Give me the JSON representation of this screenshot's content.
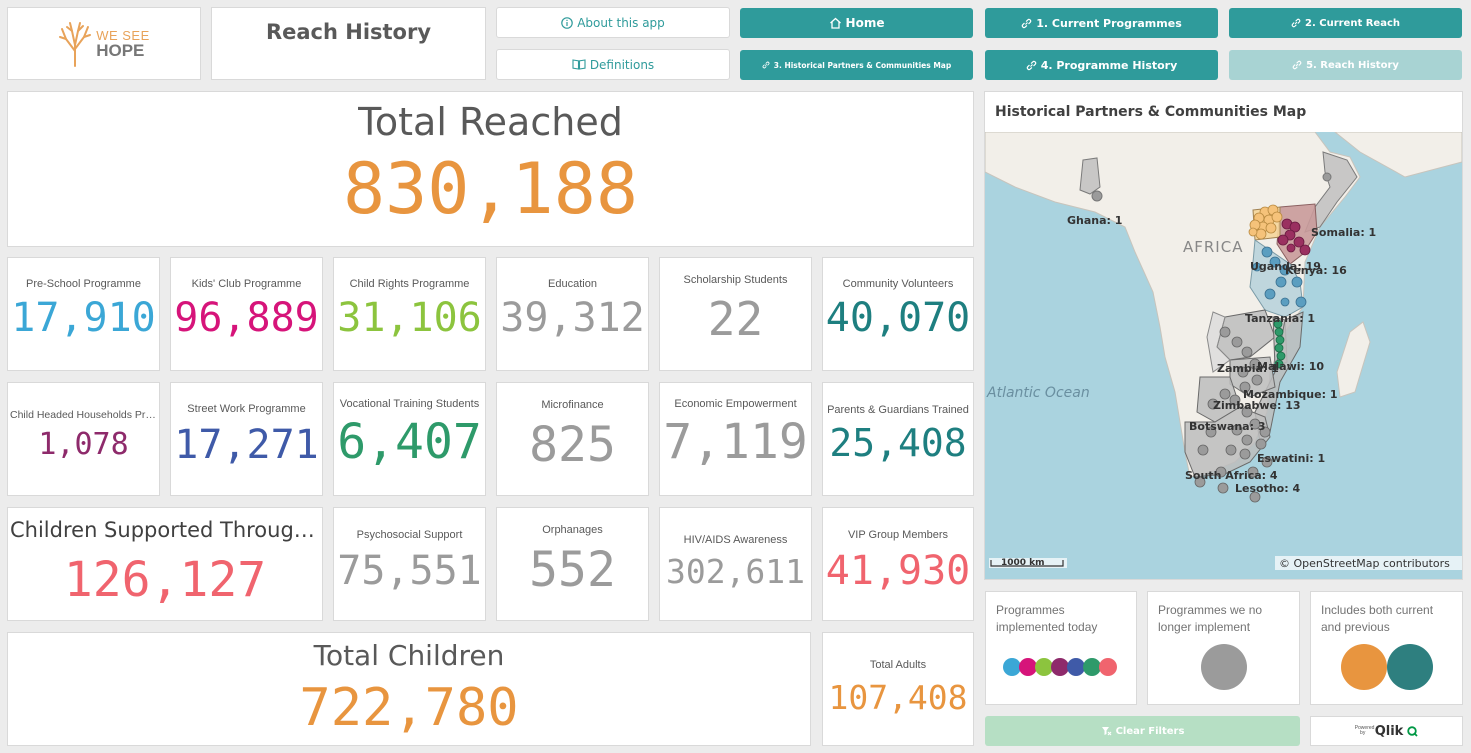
{
  "header": {
    "logo_text_line1": "WE SEE",
    "logo_text_line2": "HOPE",
    "sheet_title": "Reach History",
    "about_label": "About this app",
    "definitions_label": "Definitions"
  },
  "nav": {
    "home": "Home",
    "current_programmes": "1. Current Programmes",
    "current_reach": "2. Current Reach",
    "historical_map": "3. Historical Partners & Communities Map",
    "programme_history": "4. Programme History",
    "reach_history": "5. Reach History"
  },
  "total_reached": {
    "label": "Total Reached",
    "value": "830,188",
    "color": "#e8953f"
  },
  "kpis": [
    {
      "label": "Pre-School Programme",
      "value": "17,910",
      "color": "#3ba7d6"
    },
    {
      "label": "Kids' Club Programme",
      "value": "96,889",
      "color": "#d6147a"
    },
    {
      "label": "Child Rights Programme",
      "value": "31,106",
      "color": "#8cc43e"
    },
    {
      "label": "Education",
      "value": "39,312",
      "color": "#9b9b9b"
    },
    {
      "label": "Scholarship Students",
      "value": "22",
      "color": "#9b9b9b"
    },
    {
      "label": "Community Volunteers",
      "value": "40,070",
      "color": "#1e7f80"
    },
    {
      "label": "Child Headed Households Pro...",
      "value": "1,078",
      "color": "#8e2a6b"
    },
    {
      "label": "Street Work Programme",
      "value": "17,271",
      "color": "#3f5aa8"
    },
    {
      "label": "Vocational Training Students",
      "value": "6,407",
      "color": "#2e9a6a"
    },
    {
      "label": "Microfinance",
      "value": "825",
      "color": "#9b9b9b"
    },
    {
      "label": "Economic Empowerment",
      "value": "7,119",
      "color": "#9b9b9b"
    },
    {
      "label": "Parents & Guardians Trained",
      "value": "25,408",
      "color": "#1e7f80"
    },
    {
      "label": "Children Supported Through ...",
      "value": "126,127",
      "color": "#f0646e"
    },
    {
      "label": "Psychosocial Support",
      "value": "75,551",
      "color": "#9b9b9b"
    },
    {
      "label": "Orphanages",
      "value": "552",
      "color": "#9b9b9b"
    },
    {
      "label": "HIV/AIDS Awareness",
      "value": "302,611",
      "color": "#9b9b9b"
    },
    {
      "label": "VIP Group Members",
      "value": "41,930",
      "color": "#f0646e"
    }
  ],
  "total_children": {
    "label": "Total Children",
    "value": "722,780",
    "color": "#e8953f"
  },
  "total_adults": {
    "label": "Total Adults",
    "value": "107,408",
    "color": "#e8953f"
  },
  "map": {
    "title": "Historical Partners & Communities Map",
    "scale": "1000 km",
    "attribution": "© OpenStreetMap contributors",
    "continent_label": "AFRICA",
    "ocean_label": "Atlantic Ocean",
    "country_labels": [
      "Ghana: 1",
      "Somalia: 1",
      "Uganda: 19",
      "Kenya: 16",
      "Tanzania: 1",
      "Zambia: 1",
      "Malawi: 10",
      "Mozambique: 1",
      "Zimbabwe: 13",
      "Botswana: 3",
      "Eswatini: 1",
      "South Africa: 4",
      "Lesotho: 4"
    ]
  },
  "legend": {
    "today": "Programmes implemented today",
    "no_longer": "Programmes we no longer implement",
    "both": "Includes both current and previous",
    "today_colors": [
      "#3ba7d6",
      "#d6147a",
      "#8cc43e",
      "#8e2a6b",
      "#3f5aa8",
      "#2e9a6a",
      "#f0646e"
    ],
    "no_longer_color": "#9b9b9b",
    "both_colors": [
      "#e8953f",
      "#2e7f7f"
    ]
  },
  "footer": {
    "clear_filters": "Clear Filters",
    "powered_by": "Powered by",
    "qlik": "Qlik"
  }
}
